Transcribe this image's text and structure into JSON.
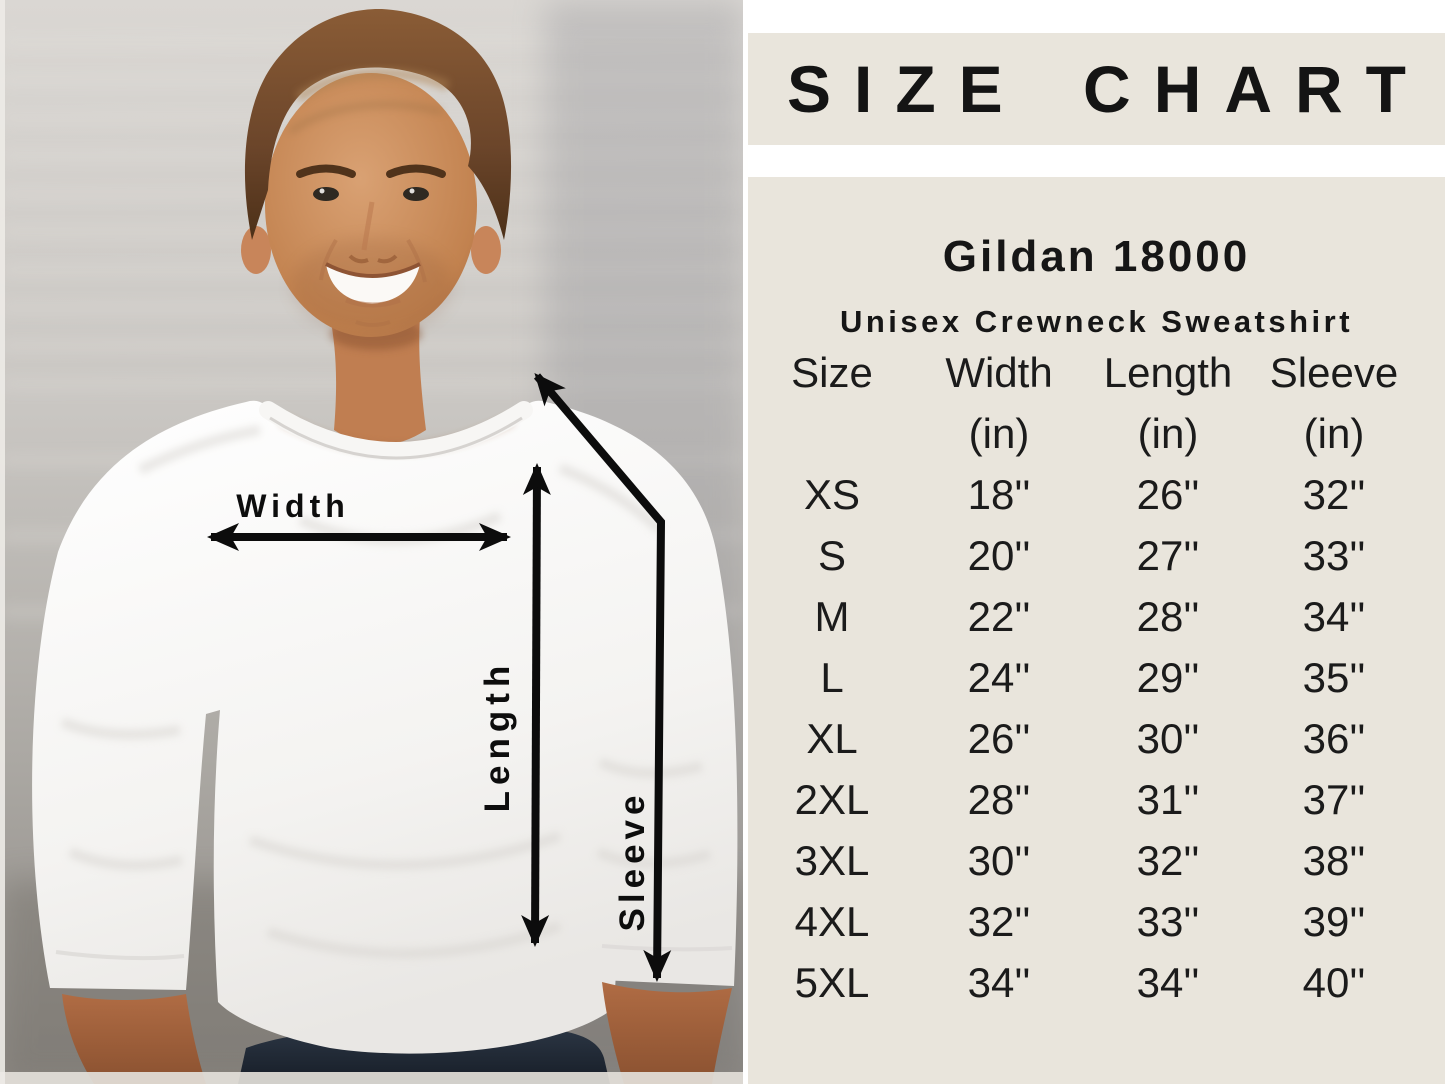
{
  "title": "SIZE CHART",
  "product": {
    "model": "Gildan 18000",
    "name": "Unisex Crewneck Sweatshirt"
  },
  "photo": {
    "description": "Smiling man with brown hair wearing a white crewneck sweatshirt in front of a blurred white brick wall, with black measurement arrows",
    "width_label": "Width",
    "length_label": "Length",
    "sleeve_label": "Sleeve"
  },
  "chart_data": {
    "type": "table",
    "title": "SIZE CHART",
    "product": "Gildan 18000 Unisex Crewneck Sweatshirt",
    "columns": [
      "Size",
      "Width (in)",
      "Length (in)",
      "Sleeve (in)"
    ],
    "header_row": [
      "Size",
      "Width",
      "Length",
      "Sleeve"
    ],
    "units_row": [
      "",
      "(in)",
      "(in)",
      "(in)"
    ],
    "rows": [
      [
        "XS",
        "18''",
        "26''",
        "32''"
      ],
      [
        "S",
        "20''",
        "27''",
        "33''"
      ],
      [
        "M",
        "22''",
        "28''",
        "34''"
      ],
      [
        "L",
        "24''",
        "29''",
        "35''"
      ],
      [
        "XL",
        "26''",
        "30''",
        "36''"
      ],
      [
        "2XL",
        "28''",
        "31''",
        "37''"
      ],
      [
        "3XL",
        "30''",
        "32''",
        "38''"
      ],
      [
        "4XL",
        "32''",
        "33''",
        "39''"
      ],
      [
        "5XL",
        "34''",
        "34''",
        "40''"
      ]
    ]
  },
  "colors": {
    "panel_bg": "#e9e5dc",
    "panel_white": "#ffffff",
    "text": "#161616",
    "arrow": "#0c0c0c",
    "sweatshirt": "#f7f6f4",
    "jeans": "#222b37"
  }
}
